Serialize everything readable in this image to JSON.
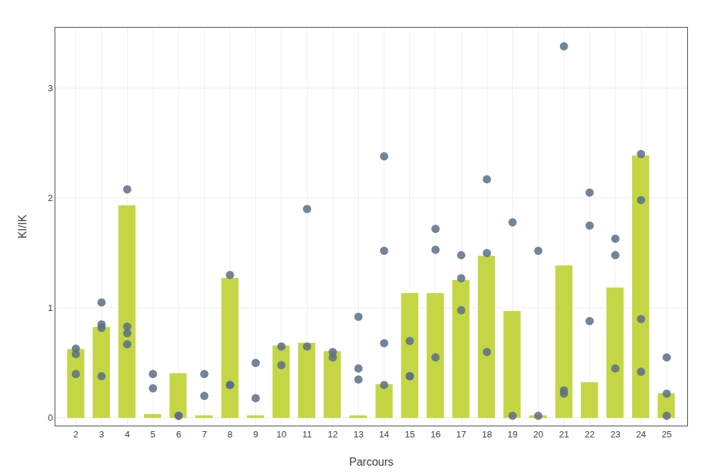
{
  "chart_data": {
    "type": "bar",
    "xlabel": "Parcours",
    "ylabel": "KI/IK",
    "x": [
      2,
      3,
      4,
      5,
      6,
      7,
      8,
      9,
      10,
      11,
      12,
      13,
      14,
      15,
      16,
      17,
      18,
      19,
      20,
      21,
      22,
      23,
      24,
      25
    ],
    "series": [
      {
        "type": "bar",
        "color": "#c5d645",
        "values": [
          0.62,
          0.82,
          1.93,
          0.03,
          0.4,
          0.02,
          1.27,
          0.02,
          0.65,
          0.68,
          0.6,
          0.02,
          0.3,
          1.13,
          1.13,
          1.25,
          1.47,
          0.97,
          0.02,
          1.38,
          0.32,
          1.18,
          2.38,
          0.22
        ]
      },
      {
        "type": "scatter",
        "color": "#5a6e8a",
        "marker": "circle",
        "x": [
          2,
          2,
          2,
          3,
          3,
          3,
          3,
          4,
          4,
          4,
          4,
          5,
          5,
          6,
          6,
          7,
          7,
          8,
          8,
          8,
          9,
          9,
          10,
          10,
          11,
          11,
          12,
          12,
          13,
          13,
          13,
          14,
          14,
          14,
          14,
          15,
          15,
          15,
          16,
          16,
          16,
          17,
          17,
          17,
          18,
          18,
          18,
          19,
          19,
          20,
          20,
          21,
          21,
          21,
          22,
          22,
          22,
          23,
          23,
          23,
          24,
          24,
          24,
          24,
          25,
          25,
          25
        ],
        "values": [
          0.58,
          0.63,
          0.4,
          0.82,
          0.85,
          1.05,
          0.38,
          0.83,
          0.77,
          0.67,
          2.08,
          0.27,
          0.4,
          0.02,
          0.02,
          0.2,
          0.4,
          0.3,
          0.3,
          1.3,
          0.18,
          0.5,
          0.48,
          0.65,
          0.65,
          1.9,
          0.6,
          0.55,
          0.45,
          0.35,
          0.92,
          0.3,
          0.68,
          1.52,
          2.38,
          0.38,
          0.38,
          0.7,
          0.55,
          1.53,
          1.72,
          0.98,
          1.27,
          1.48,
          0.6,
          1.5,
          2.17,
          0.02,
          1.78,
          0.02,
          1.52,
          0.22,
          0.25,
          3.38,
          0.88,
          2.05,
          1.75,
          0.45,
          1.48,
          1.63,
          1.98,
          0.42,
          0.9,
          2.4,
          0.02,
          0.55,
          0.22
        ]
      }
    ],
    "xlim": [
      1.2,
      25.8
    ],
    "xticks": [
      2,
      3,
      4,
      5,
      6,
      7,
      8,
      9,
      10,
      11,
      12,
      13,
      14,
      15,
      16,
      17,
      18,
      19,
      20,
      21,
      22,
      23,
      24,
      25
    ],
    "ylim": [
      -0.07,
      3.55
    ],
    "yticks": [
      0,
      1,
      2,
      3
    ],
    "grid": true
  }
}
